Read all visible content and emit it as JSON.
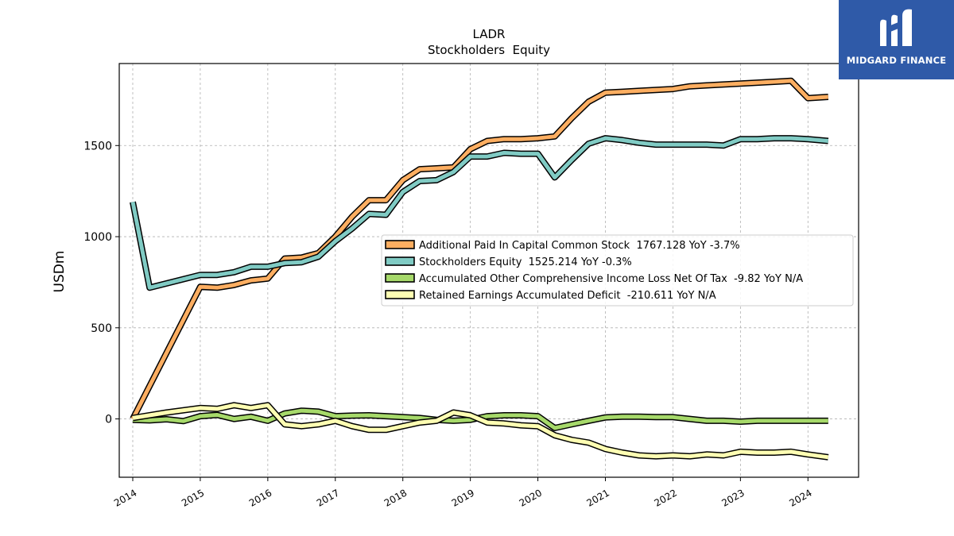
{
  "logo": {
    "text": "MIDGARD FINANCE"
  },
  "chart_data": {
    "type": "line",
    "title": "LADR",
    "subtitle": "Stockholders  Equity",
    "xlabel": "",
    "ylabel": "USDm",
    "xlim": [
      2013.8,
      2024.75
    ],
    "ylim": [
      -320,
      1950
    ],
    "xticks": [
      2014,
      2015,
      2016,
      2017,
      2018,
      2019,
      2020,
      2021,
      2022,
      2023,
      2024
    ],
    "yticks": [
      0,
      500,
      1000,
      1500
    ],
    "grid": true,
    "legend_position": "center-right",
    "series": [
      {
        "name": "Additional Paid In Capital Common Stock  1767.128 YoY -3.7%",
        "color": "#fdae61",
        "x": [
          2014.0,
          2015.0,
          2015.25,
          2015.5,
          2015.75,
          2016.0,
          2016.25,
          2016.5,
          2016.75,
          2017.0,
          2017.25,
          2017.5,
          2017.75,
          2018.0,
          2018.25,
          2018.5,
          2018.75,
          2019.0,
          2019.25,
          2019.5,
          2019.75,
          2020.0,
          2020.25,
          2020.5,
          2020.75,
          2021.0,
          2021.25,
          2021.5,
          2021.75,
          2022.0,
          2022.25,
          2022.5,
          2022.75,
          2023.0,
          2023.25,
          2023.5,
          2023.75,
          2024.0,
          2024.3
        ],
        "y": [
          0,
          725,
          720,
          735,
          760,
          770,
          880,
          885,
          910,
          1000,
          1110,
          1200,
          1200,
          1310,
          1370,
          1375,
          1380,
          1480,
          1525,
          1535,
          1535,
          1540,
          1550,
          1650,
          1740,
          1790,
          1795,
          1800,
          1805,
          1810,
          1825,
          1830,
          1835,
          1840,
          1845,
          1850,
          1855,
          1760,
          1767
        ]
      },
      {
        "name": "Stockholders Equity  1525.214 YoY -0.3%",
        "color": "#80cbc4",
        "x": [
          2014.0,
          2014.25,
          2015.0,
          2015.25,
          2015.5,
          2015.75,
          2016.0,
          2016.25,
          2016.5,
          2016.75,
          2017.0,
          2017.25,
          2017.5,
          2017.75,
          2018.0,
          2018.25,
          2018.5,
          2018.75,
          2019.0,
          2019.25,
          2019.5,
          2019.75,
          2020.0,
          2020.25,
          2020.5,
          2020.75,
          2021.0,
          2021.25,
          2021.5,
          2021.75,
          2022.0,
          2022.25,
          2022.5,
          2022.75,
          2023.0,
          2023.25,
          2023.5,
          2023.75,
          2024.0,
          2024.3
        ],
        "y": [
          1190,
          720,
          790,
          790,
          805,
          835,
          835,
          855,
          860,
          890,
          975,
          1045,
          1125,
          1120,
          1245,
          1305,
          1310,
          1355,
          1440,
          1440,
          1460,
          1455,
          1455,
          1325,
          1420,
          1510,
          1540,
          1530,
          1515,
          1505,
          1505,
          1505,
          1505,
          1500,
          1535,
          1535,
          1540,
          1540,
          1535,
          1525
        ]
      },
      {
        "name": "Accumulated Other Comprehensive Income Loss Net Of Tax  -9.82 YoY N/A",
        "color": "#a6d96a",
        "x": [
          2014.0,
          2014.25,
          2014.5,
          2014.75,
          2015.0,
          2015.25,
          2015.5,
          2015.75,
          2016.0,
          2016.25,
          2016.5,
          2016.75,
          2017.0,
          2017.25,
          2017.5,
          2017.75,
          2018.0,
          2018.25,
          2018.5,
          2018.75,
          2019.0,
          2019.25,
          2019.5,
          2019.75,
          2020.0,
          2020.25,
          2020.5,
          2020.75,
          2021.0,
          2021.25,
          2021.5,
          2021.75,
          2022.0,
          2022.25,
          2022.5,
          2022.75,
          2023.0,
          2023.25,
          2023.5,
          2023.75,
          2024.0,
          2024.3
        ],
        "y": [
          -5,
          -8,
          -2,
          -12,
          15,
          22,
          0,
          12,
          -10,
          30,
          45,
          40,
          15,
          18,
          20,
          15,
          10,
          5,
          -5,
          -10,
          -5,
          15,
          20,
          20,
          15,
          -50,
          -30,
          -10,
          8,
          12,
          12,
          10,
          10,
          0,
          -10,
          -10,
          -15,
          -10,
          -10,
          -10,
          -10,
          -10
        ]
      },
      {
        "name": "Retained Earnings Accumulated Deficit  -210.611 YoY N/A",
        "color": "#ffffb3",
        "x": [
          2014.0,
          2014.5,
          2015.0,
          2015.25,
          2015.5,
          2015.75,
          2016.0,
          2016.25,
          2016.5,
          2016.75,
          2017.0,
          2017.25,
          2017.5,
          2017.75,
          2018.0,
          2018.25,
          2018.5,
          2018.75,
          2019.0,
          2019.25,
          2019.5,
          2019.75,
          2020.0,
          2020.25,
          2020.5,
          2020.75,
          2021.0,
          2021.25,
          2021.5,
          2021.75,
          2022.0,
          2022.25,
          2022.5,
          2022.75,
          2023.0,
          2023.25,
          2023.5,
          2023.75,
          2024.0,
          2024.3
        ],
        "y": [
          5,
          35,
          60,
          55,
          75,
          60,
          75,
          -30,
          -40,
          -30,
          -10,
          -40,
          -60,
          -60,
          -40,
          -20,
          -10,
          35,
          20,
          -20,
          -25,
          -35,
          -40,
          -90,
          -115,
          -130,
          -165,
          -185,
          -200,
          -205,
          -200,
          -205,
          -195,
          -200,
          -180,
          -185,
          -185,
          -180,
          -195,
          -210
        ]
      }
    ]
  }
}
